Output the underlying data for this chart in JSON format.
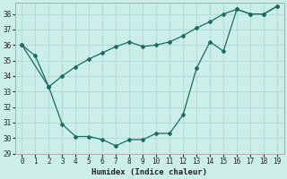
{
  "xlabel": "Humidex (Indice chaleur)",
  "bg_color": "#cceee8",
  "line_color": "#1a6b60",
  "grid_color": "#b0ddd8",
  "x_min": -0.5,
  "x_max": 19.5,
  "y_min": 29,
  "y_max": 38.7,
  "line1_x": [
    0,
    2,
    3,
    4,
    5,
    6,
    7,
    8,
    9,
    10,
    11,
    12,
    13,
    14,
    15,
    16,
    17,
    18,
    19
  ],
  "line1_y": [
    36.0,
    33.3,
    30.9,
    30.1,
    30.1,
    29.9,
    29.5,
    29.9,
    29.9,
    30.3,
    30.3,
    31.5,
    34.5,
    36.2,
    35.6,
    38.3,
    38.0,
    38.0,
    38.5
  ],
  "line2_x": [
    0,
    1,
    2,
    3,
    4,
    5,
    6,
    7,
    8,
    9,
    10,
    11,
    12,
    13,
    14,
    15,
    16,
    17,
    18,
    19
  ],
  "line2_y": [
    36.0,
    35.3,
    33.3,
    34.0,
    34.6,
    35.1,
    35.5,
    35.9,
    36.2,
    35.9,
    36.0,
    36.2,
    36.6,
    37.1,
    37.5,
    38.0,
    38.3,
    38.0,
    38.0,
    38.5
  ],
  "yticks": [
    29,
    30,
    31,
    32,
    33,
    34,
    35,
    36,
    37,
    38
  ],
  "xticks": [
    0,
    1,
    2,
    3,
    4,
    5,
    6,
    7,
    8,
    9,
    10,
    11,
    12,
    13,
    14,
    15,
    16,
    17,
    18,
    19
  ]
}
